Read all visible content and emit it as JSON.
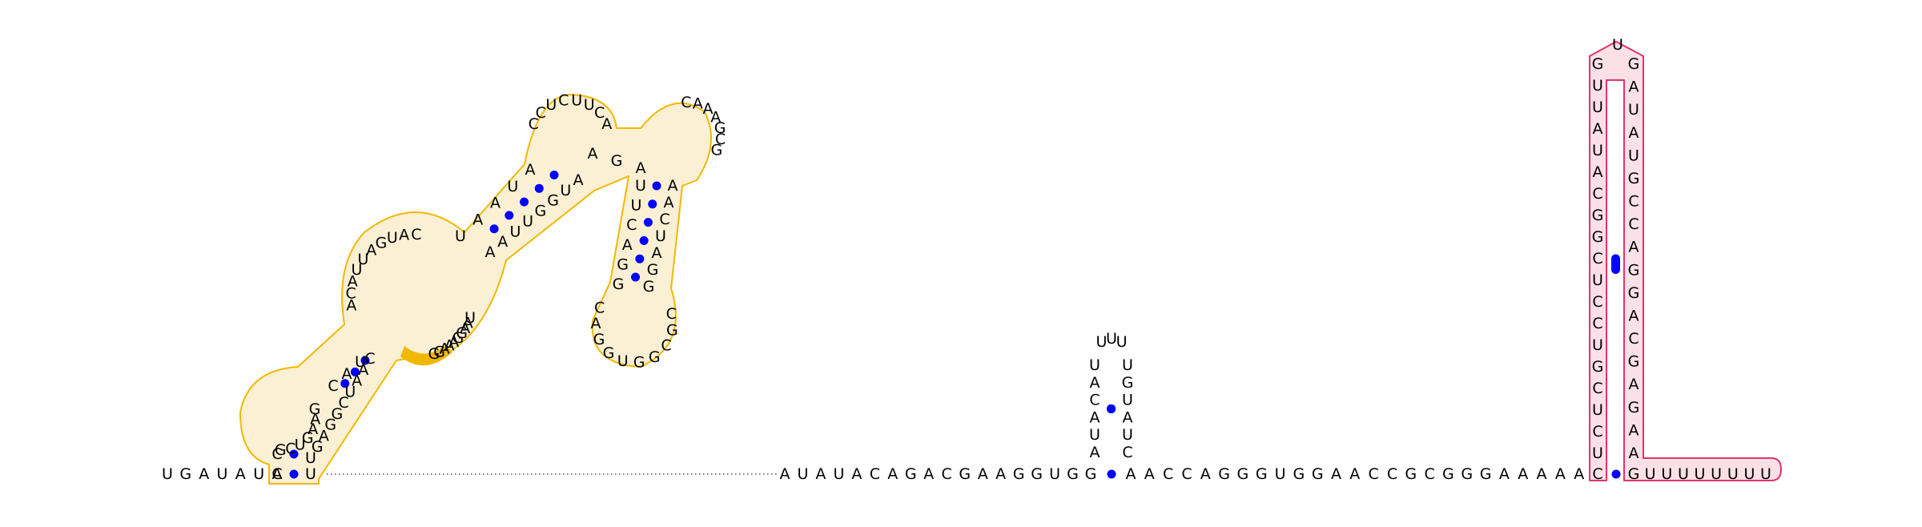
{
  "colors": {
    "nucleotide": "#000000",
    "base_pair": "#0000ff",
    "highlight_orange_outline": "#f2b800",
    "highlight_orange_fill": "#fbf0d4",
    "highlight_pink_outline": "#e1336e",
    "highlight_pink_fill": "#fbe1e7"
  },
  "segments": {
    "five_prime": [
      "U",
      "G",
      "A",
      "U",
      "A",
      "U",
      "A"
    ],
    "orange_lower_stem_5p": [
      "C",
      "C"
    ],
    "orange_left_loop": [
      "G",
      "C",
      "U",
      "G",
      "A",
      "A",
      "G"
    ],
    "orange_mid_stem_5p": [
      "C",
      "A",
      "U",
      "A",
      "C",
      "A",
      "U",
      "U",
      "A",
      "G",
      "U",
      "A",
      "C"
    ],
    "orange_upper_stem_5p": [
      "U",
      "A",
      "A",
      "U",
      "A"
    ],
    "orange_top_loop": [
      "C",
      "C",
      "U",
      "C",
      "U",
      "U",
      "C",
      "A"
    ],
    "orange_hairpin_5p": [
      "C",
      "A",
      "A",
      "A",
      "G",
      "C",
      "G",
      "A",
      "A",
      "C",
      "U",
      "A",
      "G",
      "G",
      "C",
      "G",
      "C",
      "G",
      "G",
      "U",
      "G",
      "G",
      "A",
      "C",
      "G",
      "G",
      "A",
      "C",
      "U",
      "U",
      "A",
      "G",
      "A"
    ],
    "orange_return_3p": [
      "A",
      "U",
      "G",
      "G",
      "U",
      "U",
      "A",
      "A",
      "U",
      "A",
      "A",
      "G",
      "G",
      "A",
      "A",
      "A",
      "G",
      "G",
      "C",
      "A",
      "A",
      "U",
      "C",
      "G",
      "G",
      "A",
      "G",
      "U"
    ],
    "orange_end": [
      "U"
    ],
    "backbone_gap_count": 28,
    "middle_run": [
      "A",
      "U",
      "A",
      "U",
      "A",
      "C",
      "A",
      "G",
      "A",
      "C",
      "G",
      "A",
      "A",
      "G",
      "G",
      "U",
      "G",
      "G"
    ],
    "small_hairpin_left": [
      "A",
      "U",
      "A",
      "C",
      "A",
      "U"
    ],
    "small_hairpin_loop": [
      "U",
      "U",
      "U"
    ],
    "small_hairpin_right": [
      "U",
      "G",
      "U",
      "A",
      "U",
      "C"
    ],
    "right_run": [
      "A",
      "A",
      "C",
      "C",
      "A",
      "G",
      "G",
      "G",
      "U",
      "G",
      "G",
      "A",
      "A",
      "C",
      "C",
      "G",
      "C",
      "G",
      "G",
      "G",
      "A",
      "A",
      "A",
      "A",
      "A",
      "C"
    ],
    "pink_stem_left": [
      "U",
      "C",
      "U",
      "C",
      "G",
      "U",
      "C",
      "C",
      "U",
      "C",
      "G",
      "G",
      "C",
      "A",
      "U",
      "A",
      "U",
      "U",
      "G"
    ],
    "pink_loop": [
      "U"
    ],
    "pink_stem_right": [
      "G",
      "A",
      "U",
      "A",
      "U",
      "G",
      "C",
      "C",
      "A",
      "G",
      "G",
      "A",
      "C",
      "G",
      "A",
      "G",
      "A",
      "A"
    ],
    "three_prime": [
      "G",
      "U",
      "U",
      "U",
      "U",
      "U",
      "U",
      "U",
      "U"
    ]
  }
}
